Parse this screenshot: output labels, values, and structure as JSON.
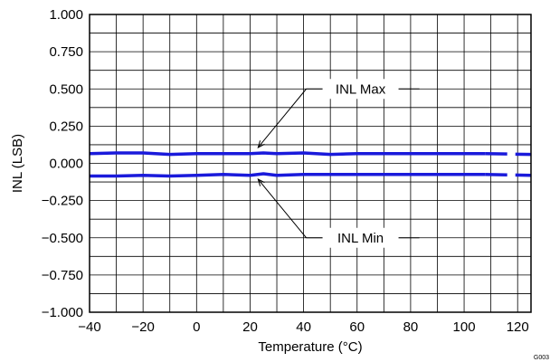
{
  "chart_data": {
    "type": "line",
    "title": "",
    "xlabel": "Temperature (°C)",
    "ylabel": "INL (LSB)",
    "xlim": [
      -40,
      125
    ],
    "ylim": [
      -1.0,
      1.0
    ],
    "x_ticks": [
      -40,
      -20,
      0,
      20,
      40,
      60,
      80,
      100,
      120
    ],
    "x_tick_labels": [
      "−40",
      "−20",
      "0",
      "20",
      "40",
      "60",
      "80",
      "100",
      "120"
    ],
    "y_ticks": [
      1.0,
      0.75,
      0.5,
      0.25,
      0.0,
      -0.25,
      -0.5,
      -0.75,
      -1.0
    ],
    "y_tick_labels": [
      "1.000",
      "0.750",
      "0.500",
      "0.250",
      "0.000",
      "−0.250",
      "−0.500",
      "−0.750",
      "−1.000"
    ],
    "grid": true,
    "line_color": "#1a1adb",
    "series": [
      {
        "name": "INL Max",
        "x": [
          -40,
          -30,
          -20,
          -10,
          0,
          10,
          20,
          25,
          30,
          40,
          50,
          60,
          70,
          80,
          90,
          100,
          108
        ],
        "y": [
          0.065,
          0.07,
          0.07,
          0.06,
          0.065,
          0.065,
          0.065,
          0.07,
          0.065,
          0.07,
          0.06,
          0.065,
          0.065,
          0.065,
          0.065,
          0.065,
          0.065
        ],
        "extrapolated": {
          "x": [
            108,
            125
          ],
          "y": [
            0.065,
            0.06
          ]
        }
      },
      {
        "name": "INL Min",
        "x": [
          -40,
          -30,
          -20,
          -10,
          0,
          10,
          20,
          25,
          30,
          40,
          50,
          60,
          70,
          80,
          90,
          100,
          108
        ],
        "y": [
          -0.085,
          -0.085,
          -0.08,
          -0.085,
          -0.08,
          -0.075,
          -0.08,
          -0.07,
          -0.08,
          -0.075,
          -0.075,
          -0.075,
          -0.075,
          -0.075,
          -0.075,
          -0.075,
          -0.075
        ],
        "extrapolated": {
          "x": [
            108,
            125
          ],
          "y": [
            -0.075,
            -0.08
          ]
        }
      }
    ],
    "annotations": [
      {
        "text": "INL Max",
        "target_x": 23,
        "target_y": 0.07,
        "label_anchor": {
          "x": 41,
          "y": 0.5
        }
      },
      {
        "text": "INL Min",
        "target_x": 23,
        "target_y": -0.07,
        "label_anchor": {
          "x": 41,
          "y": -0.5
        }
      }
    ],
    "figure_id": "G003"
  }
}
